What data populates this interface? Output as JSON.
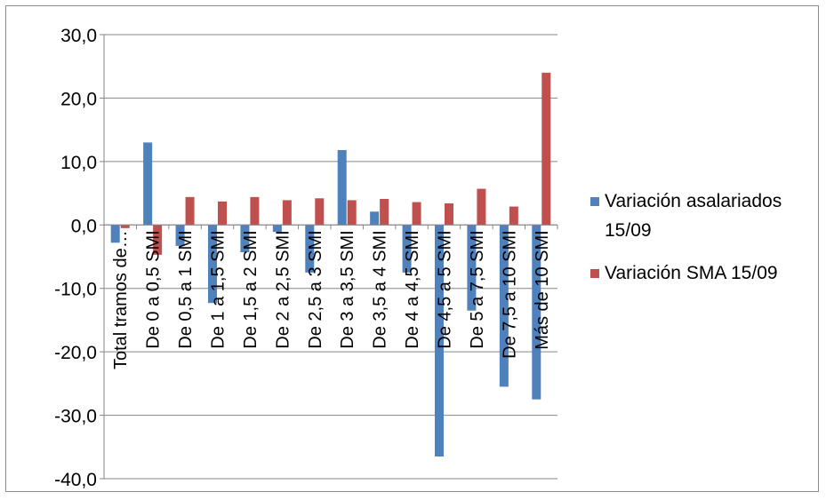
{
  "chart_data": {
    "type": "bar",
    "categories": [
      "Total tramos de…",
      "De 0 a 0,5 SMI",
      "De 0,5 a 1 SMI",
      "De 1 a 1,5 SMI",
      "De 1,5 a 2 SMI",
      "De 2 a 2,5 SMI",
      "De 2,5 a 3 SMI",
      "De 3 a 3,5 SMI",
      "De 3,5 a 4 SMI",
      "De 4 a 4,5 SMI",
      "De 4,5 a 5 SMI",
      "De 5 a 7,5 SMI",
      "De 7,5 a 10 SMI",
      "Más de 10 SMI"
    ],
    "series": [
      {
        "name": "Variación asalariados 15/09",
        "color": "#4f81bd",
        "values": [
          -2.8,
          13.0,
          -3.3,
          -12.3,
          -4.3,
          -1.1,
          -7.5,
          11.8,
          2.1,
          -7.5,
          -36.5,
          -13.5,
          -25.5,
          -27.5
        ]
      },
      {
        "name": "Variación SMA 15/09",
        "color": "#c0504d",
        "values": [
          -0.5,
          -4.7,
          4.4,
          3.7,
          4.4,
          3.9,
          4.2,
          3.9,
          4.1,
          3.6,
          3.4,
          5.7,
          2.9,
          24.0
        ]
      }
    ],
    "ylim": [
      -40,
      30
    ],
    "yticks": [
      "30,0",
      "20,0",
      "10,0",
      "0,0",
      "-10,0",
      "-20,0",
      "-30,0",
      "-40,0"
    ],
    "grid": true,
    "legend_position": "right"
  }
}
